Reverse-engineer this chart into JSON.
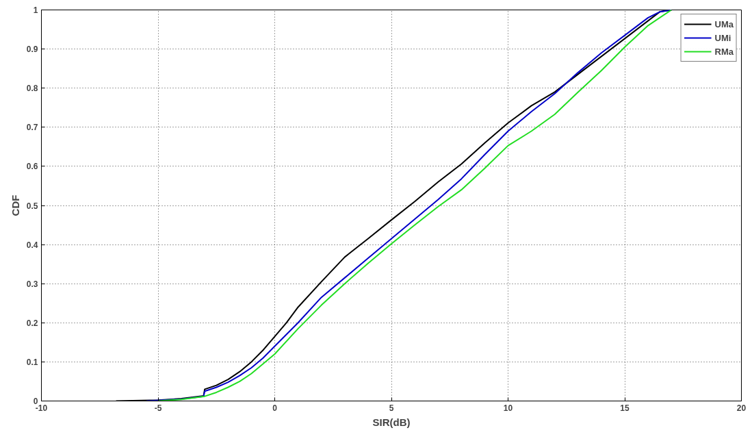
{
  "chart_data": {
    "type": "line",
    "xlabel": "SIR(dB)",
    "ylabel": "CDF",
    "xlim": [
      -10,
      20
    ],
    "xticks": [
      -10,
      -5,
      0,
      5,
      10,
      15,
      20
    ],
    "ylim": [
      0,
      1
    ],
    "yticks": [
      0,
      0.1,
      0.2,
      0.3,
      0.4,
      0.5,
      0.6,
      0.7,
      0.8,
      0.9,
      1
    ],
    "grid": true,
    "legend": "top right",
    "marker": "none",
    "line_style": "solid",
    "series": [
      {
        "name": "UMa",
        "color": "#000000",
        "x": [
          -6.8,
          -5,
          -4,
          -3.05,
          -3.0,
          -2.5,
          -2,
          -1.5,
          -1,
          -0.5,
          0,
          0.5,
          1,
          2,
          3,
          4,
          5,
          6,
          7,
          8,
          9,
          10,
          11,
          12,
          16.5,
          17
        ],
        "values": [
          0,
          0.002,
          0.006,
          0.013,
          0.03,
          0.04,
          0.055,
          0.075,
          0.1,
          0.13,
          0.165,
          0.2,
          0.24,
          0.305,
          0.368,
          0.415,
          0.463,
          0.51,
          0.56,
          0.606,
          0.66,
          0.711,
          0.755,
          0.79,
          0.995,
          1.0
        ]
      },
      {
        "name": "UMi",
        "color": "#0000c8",
        "x": [
          -5.5,
          -4,
          -3.05,
          -3.0,
          -2.5,
          -2,
          -1.5,
          -1,
          -0.5,
          0,
          1,
          2,
          3,
          4,
          5,
          6,
          7,
          8,
          9,
          10,
          11,
          12,
          13,
          14,
          15,
          16,
          16.5,
          17
        ],
        "values": [
          0,
          0.005,
          0.012,
          0.025,
          0.035,
          0.048,
          0.065,
          0.085,
          0.11,
          0.14,
          0.2,
          0.265,
          0.315,
          0.365,
          0.415,
          0.465,
          0.515,
          0.568,
          0.63,
          0.69,
          0.74,
          0.786,
          0.84,
          0.89,
          0.935,
          0.98,
          0.995,
          1.0
        ]
      },
      {
        "name": "RMa",
        "color": "#22dd22",
        "x": [
          -5,
          -4,
          -3,
          -2.5,
          -2,
          -1.5,
          -1,
          -0.5,
          0,
          1,
          2,
          3,
          4,
          5,
          6,
          7,
          8,
          9,
          10,
          11,
          12,
          13,
          14,
          15,
          16,
          16.5,
          17
        ],
        "values": [
          0,
          0.004,
          0.012,
          0.022,
          0.035,
          0.05,
          0.07,
          0.095,
          0.12,
          0.185,
          0.245,
          0.3,
          0.352,
          0.402,
          0.45,
          0.497,
          0.54,
          0.595,
          0.653,
          0.69,
          0.733,
          0.79,
          0.845,
          0.905,
          0.96,
          0.98,
          1.0
        ]
      }
    ]
  }
}
